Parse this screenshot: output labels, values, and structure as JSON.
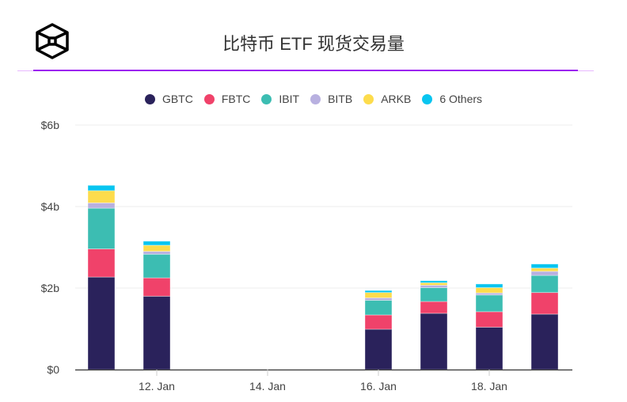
{
  "header": {
    "logo": "cube-logo",
    "title": "比特币 ETF 现货交易量"
  },
  "chart_data": {
    "type": "bar",
    "stacked": true,
    "title": "比特币 ETF 现货交易量",
    "xlabel": "",
    "ylabel": "",
    "ylim": [
      0,
      6
    ],
    "y_unit": "billion USD",
    "y_ticks": [
      "$0",
      "$2b",
      "$4b",
      "$6b"
    ],
    "y_tick_values": [
      0,
      2,
      4,
      6
    ],
    "x_ticks": [
      "12. Jan",
      "14. Jan",
      "16. Jan",
      "18. Jan"
    ],
    "x_tick_days": [
      12,
      14,
      16,
      18
    ],
    "x_day_range": [
      11,
      19
    ],
    "categories": [
      "11. Jan",
      "12. Jan",
      "16. Jan",
      "17. Jan",
      "18. Jan",
      "19. Jan"
    ],
    "category_days": [
      11,
      12,
      16,
      17,
      18,
      19
    ],
    "grid": true,
    "legend_position": "top-center",
    "series": [
      {
        "name": "GBTC",
        "color": "#2a225b",
        "values": [
          2.27,
          1.8,
          0.99,
          1.38,
          1.04,
          1.36
        ]
      },
      {
        "name": "FBTC",
        "color": "#f0426a",
        "values": [
          0.69,
          0.45,
          0.35,
          0.29,
          0.38,
          0.53
        ]
      },
      {
        "name": "IBIT",
        "color": "#3cbdb2",
        "values": [
          1.0,
          0.58,
          0.36,
          0.34,
          0.41,
          0.42
        ]
      },
      {
        "name": "BITB",
        "color": "#b8b0e0",
        "values": [
          0.13,
          0.07,
          0.06,
          0.06,
          0.05,
          0.1
        ]
      },
      {
        "name": "ARKB",
        "color": "#fddc4c",
        "values": [
          0.3,
          0.15,
          0.13,
          0.06,
          0.13,
          0.08
        ]
      },
      {
        "name": "6 Others",
        "color": "#08c5f0",
        "values": [
          0.13,
          0.1,
          0.05,
          0.05,
          0.09,
          0.1
        ]
      }
    ]
  }
}
